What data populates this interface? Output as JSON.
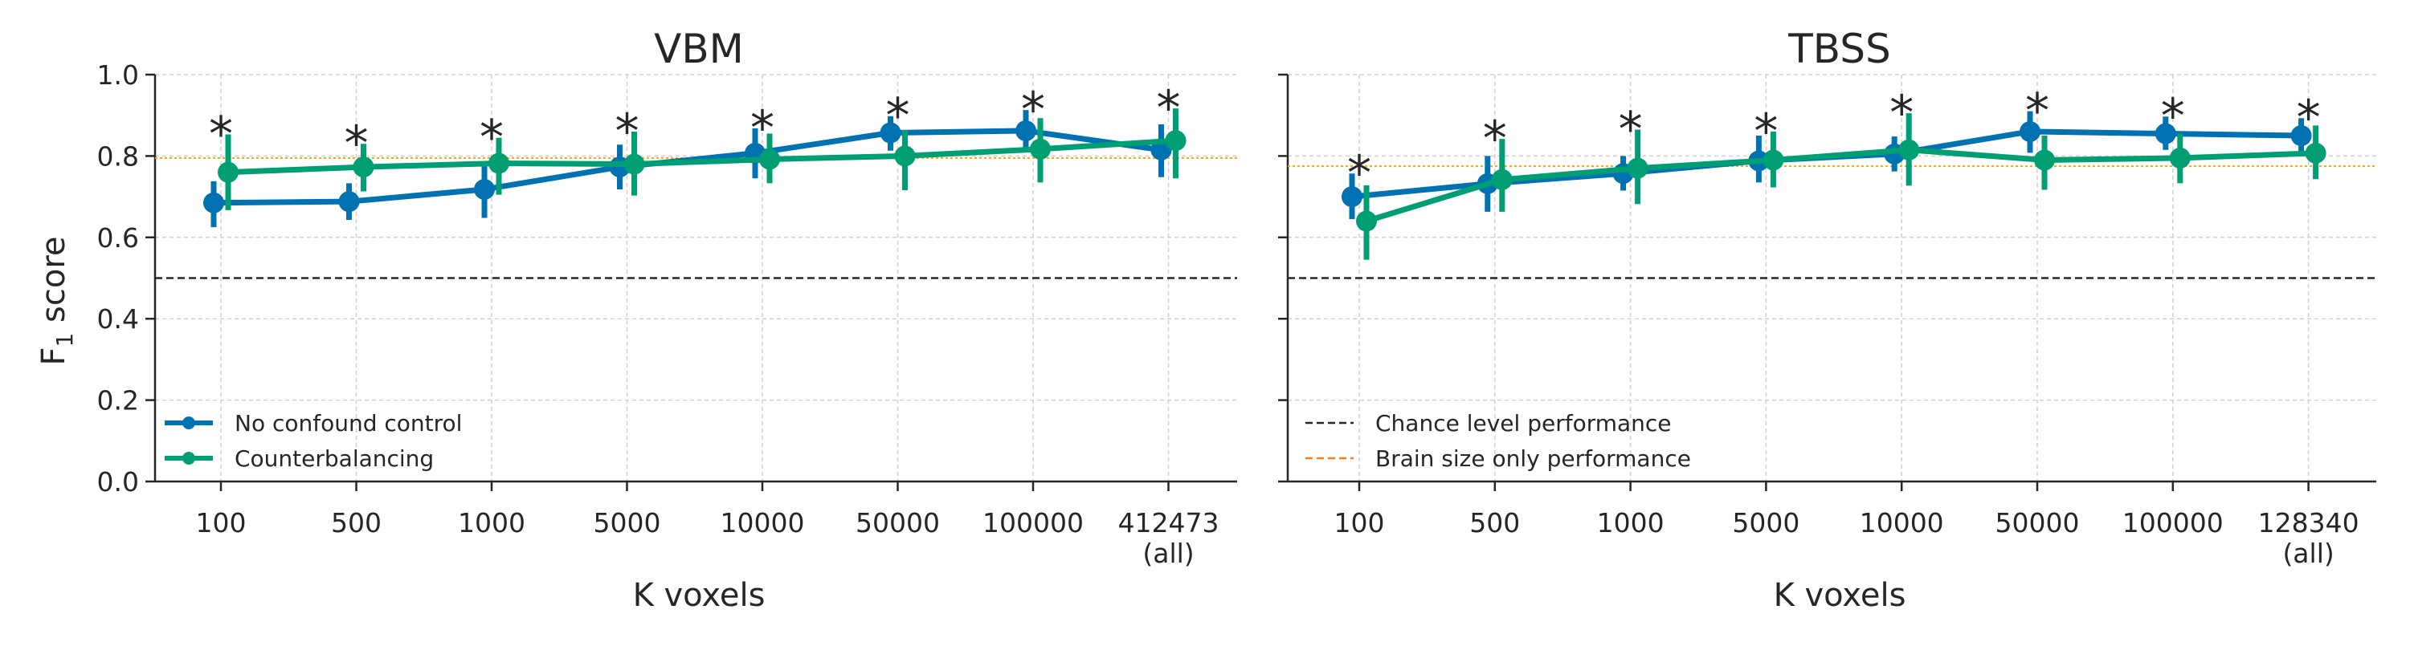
{
  "chart_data": [
    {
      "type": "line",
      "title": "VBM",
      "xlabel": "K voxels",
      "ylabel": "F1 score",
      "ylim": [
        0,
        1
      ],
      "yticks": [
        "0.0",
        "0.2",
        "0.4",
        "0.6",
        "0.8",
        "1.0"
      ],
      "categories": [
        "100",
        "500",
        "1000",
        "5000",
        "10000",
        "50000",
        "100000",
        "412473\n(all)"
      ],
      "grid": true,
      "significance_marker": "*",
      "significant": [
        true,
        true,
        true,
        true,
        true,
        true,
        true,
        true
      ],
      "chance_level": 0.5,
      "brain_size_level": 0.795,
      "series": [
        {
          "name": "No confound control",
          "color": "#0072b2",
          "values": [
            0.685,
            0.688,
            0.718,
            0.773,
            0.807,
            0.857,
            0.862,
            0.815
          ],
          "err_low": [
            0.625,
            0.643,
            0.648,
            0.718,
            0.745,
            0.813,
            0.812,
            0.748
          ],
          "err_high": [
            0.738,
            0.733,
            0.787,
            0.828,
            0.868,
            0.898,
            0.913,
            0.878
          ]
        },
        {
          "name": "Counterbalancing",
          "color": "#009e73",
          "values": [
            0.76,
            0.773,
            0.782,
            0.78,
            0.792,
            0.8,
            0.817,
            0.838
          ],
          "err_low": [
            0.667,
            0.713,
            0.705,
            0.703,
            0.733,
            0.716,
            0.735,
            0.745
          ],
          "err_high": [
            0.853,
            0.83,
            0.845,
            0.86,
            0.855,
            0.864,
            0.893,
            0.917
          ]
        }
      ],
      "legend_position": "lower-left"
    },
    {
      "type": "line",
      "title": "TBSS",
      "xlabel": "K voxels",
      "ylabel": "",
      "ylim": [
        0,
        1
      ],
      "categories": [
        "100",
        "500",
        "1000",
        "5000",
        "10000",
        "50000",
        "100000",
        "128340\n(all)"
      ],
      "grid": true,
      "significance_marker": "*",
      "significant": [
        true,
        true,
        true,
        true,
        true,
        true,
        true,
        true
      ],
      "chance_level": 0.5,
      "brain_size_level": 0.775,
      "series": [
        {
          "name": "No confound control",
          "color": "#0072b2",
          "values": [
            0.7,
            0.732,
            0.757,
            0.788,
            0.805,
            0.86,
            0.855,
            0.85
          ],
          "err_low": [
            0.645,
            0.663,
            0.715,
            0.735,
            0.762,
            0.808,
            0.815,
            0.8
          ],
          "err_high": [
            0.757,
            0.8,
            0.8,
            0.85,
            0.848,
            0.91,
            0.897,
            0.893
          ]
        },
        {
          "name": "Counterbalancing",
          "color": "#009e73",
          "values": [
            0.64,
            0.742,
            0.77,
            0.79,
            0.815,
            0.79,
            0.795,
            0.807
          ],
          "err_low": [
            0.545,
            0.663,
            0.682,
            0.723,
            0.727,
            0.717,
            0.733,
            0.743
          ],
          "err_high": [
            0.728,
            0.842,
            0.865,
            0.86,
            0.905,
            0.85,
            0.855,
            0.875
          ]
        }
      ],
      "reference_lines": [
        {
          "name": "Chance level performance",
          "color": "#262626"
        },
        {
          "name": "Brain size only performance",
          "color": "#ff7f0e"
        }
      ],
      "legend_position": "lower-left"
    }
  ]
}
